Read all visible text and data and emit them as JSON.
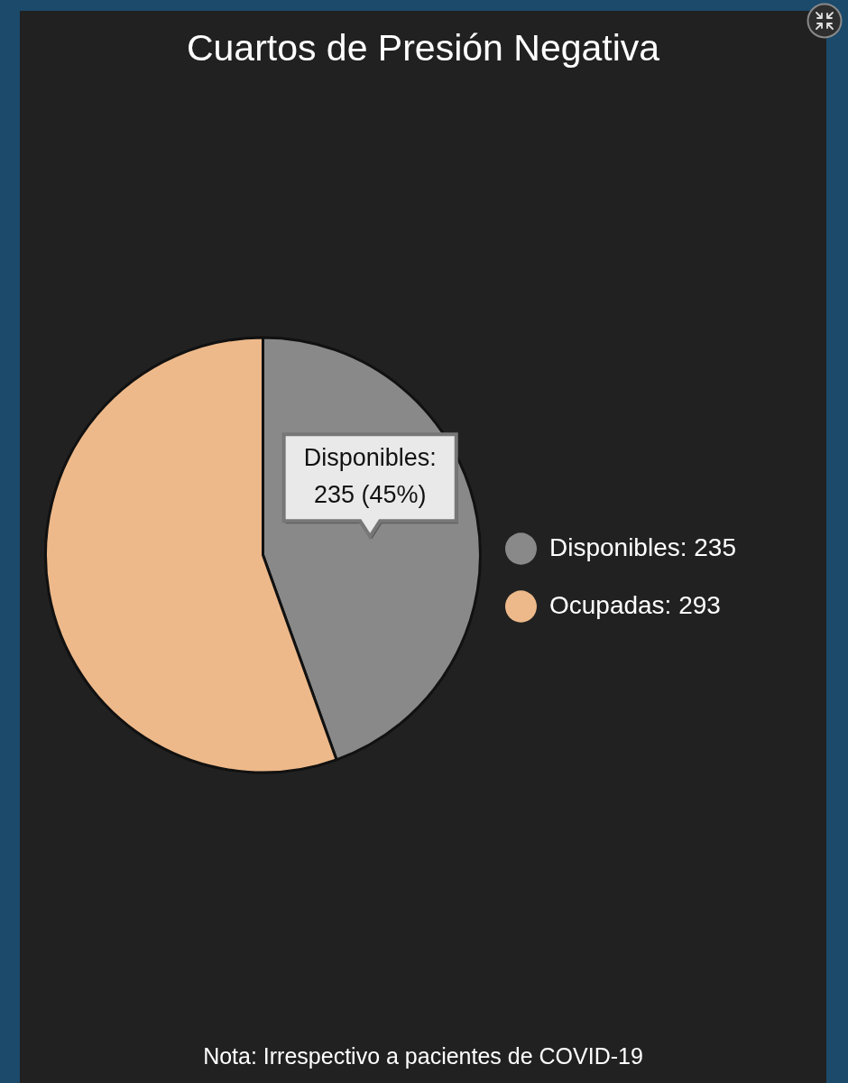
{
  "chart_data": {
    "type": "pie",
    "title": "Cuartos de Presión Negativa",
    "categories": [
      "Disponibles",
      "Ocupadas"
    ],
    "values": [
      235,
      293
    ],
    "colors": [
      "#898989",
      "#eeb98a"
    ],
    "value_labels": [
      "235",
      "293"
    ],
    "legend": "right",
    "annotations": [
      {
        "text": "Disponibles:\n235 (45%)",
        "x": "Disponibles"
      },
      "Nota: Irrespectivo a pacientes de COVID-19"
    ]
  }
}
